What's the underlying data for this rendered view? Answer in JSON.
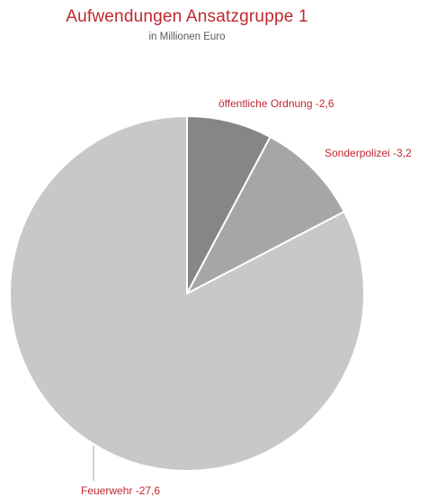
{
  "colors": {
    "title": "#c0282f",
    "label": "#c0282f",
    "slice_border": "#ffffff",
    "leader_line": "#a6a6a6"
  },
  "chart_data": {
    "type": "pie",
    "title": "Aufwendungen Ansatzgruppe 1",
    "subtitle": "in Millionen Euro",
    "start_angle_deg": 0,
    "direction": "clockwise",
    "slices": [
      {
        "name": "öffentliche Ordnung",
        "value": 2.6,
        "label": "öffentliche Ordnung -2,6",
        "color": "#868686"
      },
      {
        "name": "Sonderpolizei",
        "value": 3.2,
        "label": "Sonderpolizei -3,2",
        "color": "#a6a6a6"
      },
      {
        "name": "Feuerwehr",
        "value": 27.6,
        "label": "Feuerwehr -27,6",
        "color": "#c8c8c8"
      }
    ]
  }
}
